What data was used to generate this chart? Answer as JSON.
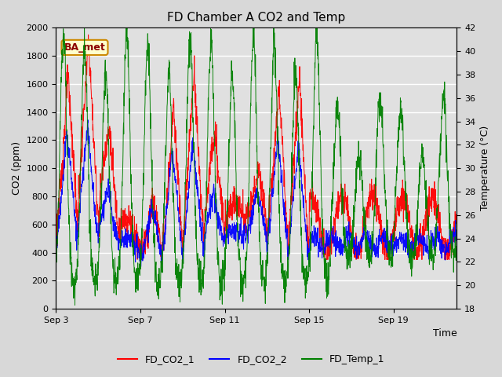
{
  "title": "FD Chamber A CO2 and Temp",
  "xlabel": "Time",
  "ylabel_left": "CO2 (ppm)",
  "ylabel_right": "Temperature (°C)",
  "annotation": "BA_met",
  "ylim_left": [
    0,
    2000
  ],
  "ylim_right": [
    18,
    42
  ],
  "yticks_left": [
    0,
    200,
    400,
    600,
    800,
    1000,
    1200,
    1400,
    1600,
    1800,
    2000
  ],
  "yticks_right": [
    18,
    20,
    22,
    24,
    26,
    28,
    30,
    32,
    34,
    36,
    38,
    40,
    42
  ],
  "xlim": [
    0,
    19
  ],
  "xtick_labels": [
    "Sep 3",
    "Sep 7",
    "Sep 11",
    "Sep 15",
    "Sep 19"
  ],
  "xtick_positions": [
    0,
    4,
    8,
    12,
    16
  ],
  "line_colors": [
    "red",
    "blue",
    "green"
  ],
  "background_color": "#d8d8d8",
  "plot_bg_color": "#e0e0e0",
  "grid_color": "white",
  "title_fontsize": 11,
  "axis_fontsize": 9,
  "tick_fontsize": 8,
  "legend_fontsize": 9
}
